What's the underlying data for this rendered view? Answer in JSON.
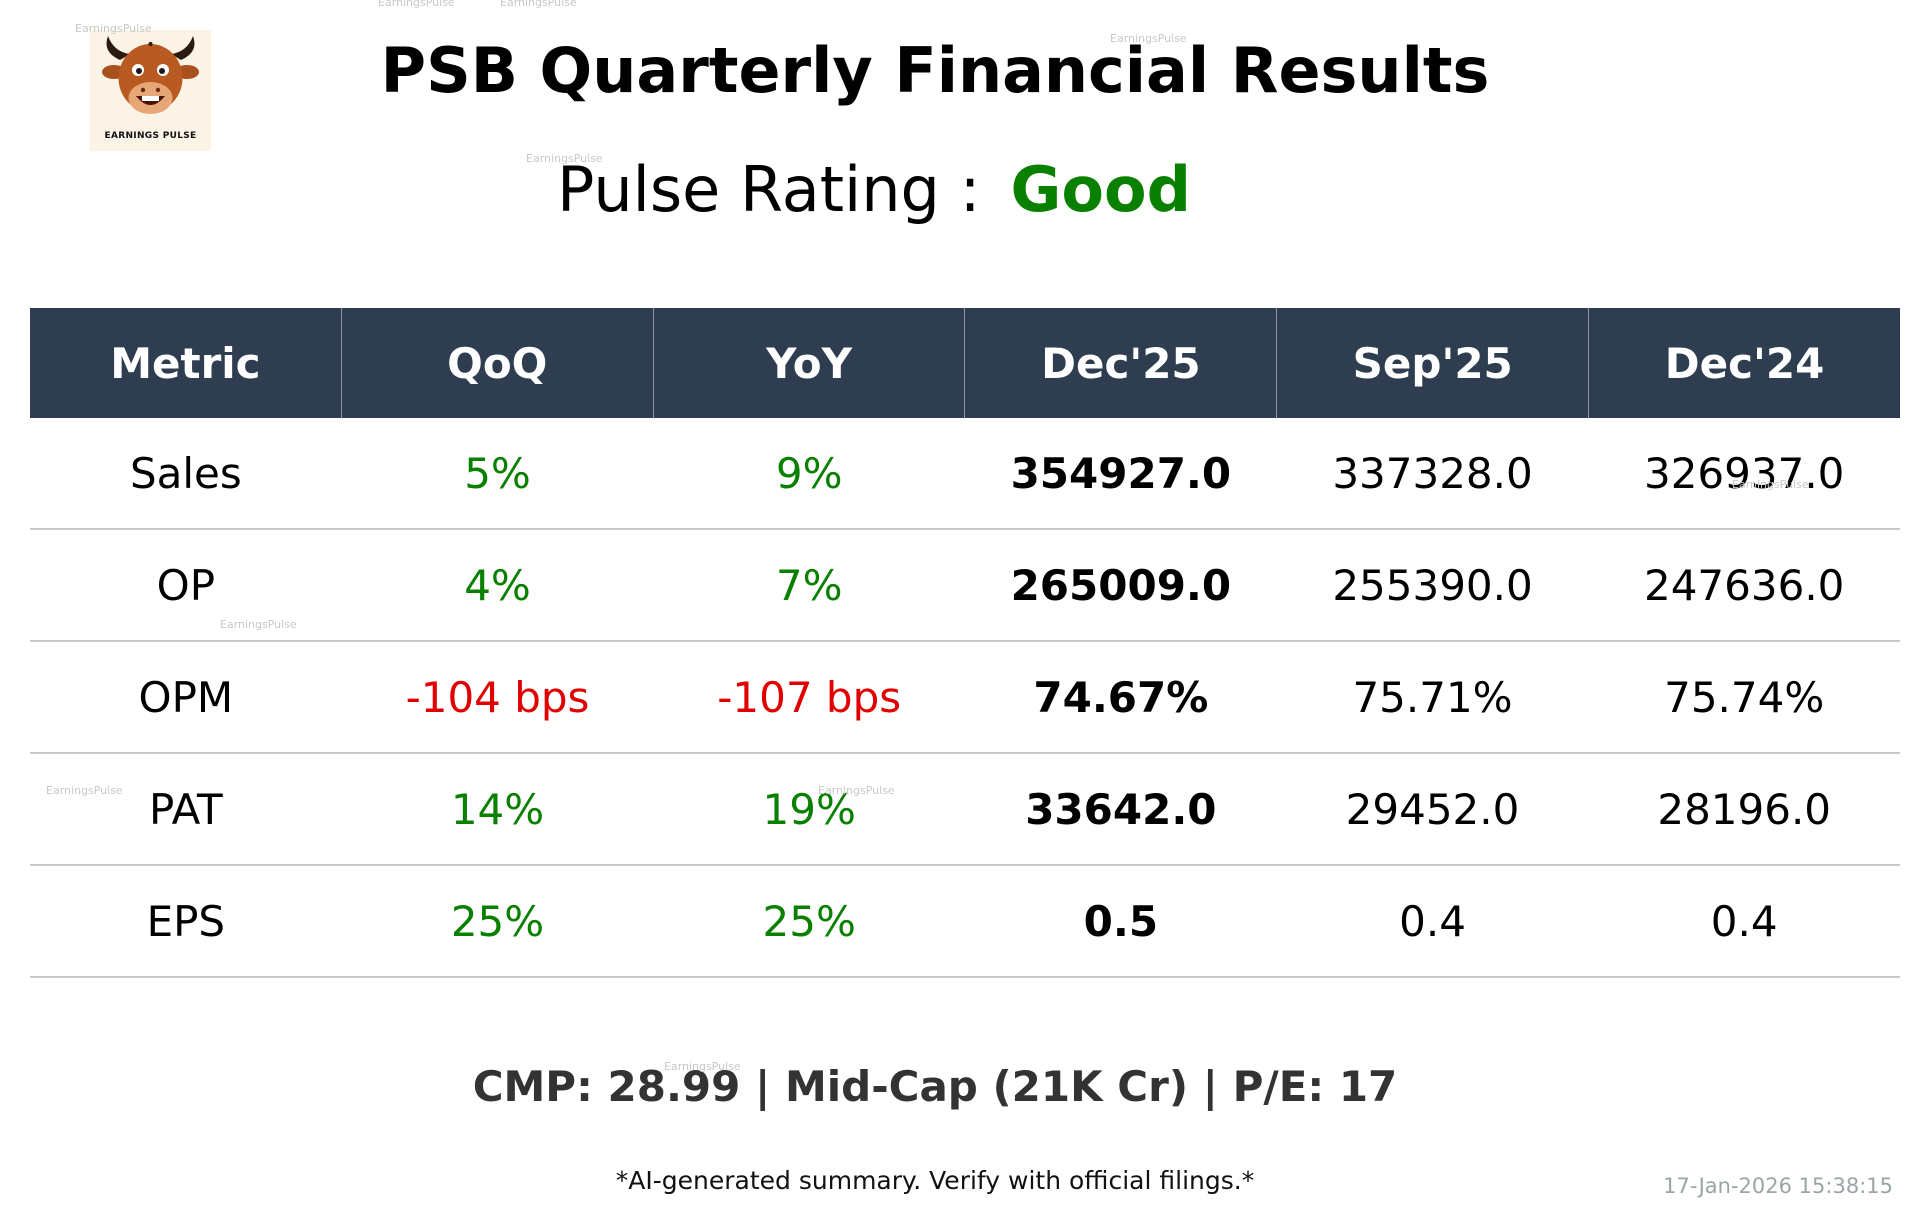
{
  "logo": {
    "text": "EARNINGS PULSE",
    "icon": "bull-mascot-icon"
  },
  "header": {
    "title": "PSB Quarterly Financial Results",
    "rating_label": "Pulse Rating :",
    "rating_value": "Good"
  },
  "table": {
    "headers": [
      "Metric",
      "QoQ",
      "YoY",
      "Dec'25",
      "Sep'25",
      "Dec'24"
    ],
    "rows": [
      {
        "metric": "Sales",
        "qoq": "5%",
        "yoy": "9%",
        "dec25": "354927.0",
        "sep25": "337328.0",
        "dec24": "326937.0"
      },
      {
        "metric": "OP",
        "qoq": "4%",
        "yoy": "7%",
        "dec25": "265009.0",
        "sep25": "255390.0",
        "dec24": "247636.0"
      },
      {
        "metric": "OPM",
        "qoq": "-104 bps",
        "yoy": "-107 bps",
        "dec25": "74.67%",
        "sep25": "75.71%",
        "dec24": "75.74%"
      },
      {
        "metric": "PAT",
        "qoq": "14%",
        "yoy": "19%",
        "dec25": "33642.0",
        "sep25": "29452.0",
        "dec24": "28196.0"
      },
      {
        "metric": "EPS",
        "qoq": "25%",
        "yoy": "25%",
        "dec25": "0.5",
        "sep25": "0.4",
        "dec24": "0.4"
      }
    ]
  },
  "footer": {
    "stats": "CMP: 28.99 | Mid-Cap (21K Cr) | P/E: 17",
    "disclaimer": "*AI-generated summary. Verify with official filings.*",
    "timestamp": "17-Jan-2026 15:38:15"
  },
  "watermark": "EarningsPulse",
  "colors": {
    "header_bg": "#2e3e50",
    "positive": "#0a8000",
    "negative": "#e00000"
  }
}
